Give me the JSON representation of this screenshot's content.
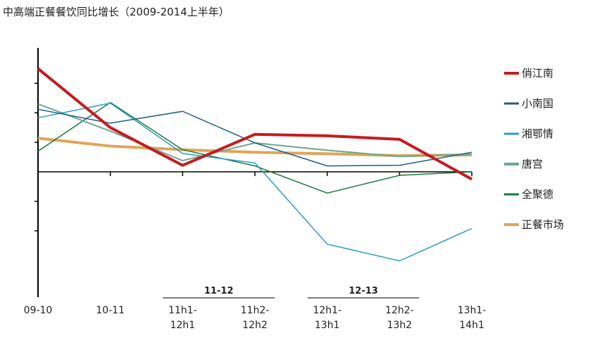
{
  "title": "中高端正餐餐饮同比增长（2009-2014上半年）",
  "chart_data": {
    "type": "line",
    "title": "中高端正餐餐饮同比增长（2009-2014上半年）",
    "xlabel": "",
    "ylabel": "",
    "ylim": [
      -0.3,
      0.3
    ],
    "categories": [
      [
        "09-10"
      ],
      [
        "10-11"
      ],
      [
        "11h1-",
        "12h1"
      ],
      [
        "11h2-",
        "12h2"
      ],
      [
        "12h1-",
        "13h1"
      ],
      [
        "12h2-",
        "13h2"
      ],
      [
        "13h1-",
        "14h1"
      ]
    ],
    "groups": [
      {
        "label": "11-12",
        "from": 2,
        "to": 3
      },
      {
        "label": "12-13",
        "from": 4,
        "to": 5
      }
    ],
    "series": [
      {
        "name": "正餐市场",
        "color": "#e0a55a",
        "width": 4,
        "values": [
          0.114,
          0.087,
          0.075,
          0.066,
          0.061,
          0.055,
          0.057
        ]
      },
      {
        "name": "全聚德",
        "color": "#1a7a3a",
        "width": 1.5,
        "values": [
          0.07,
          0.235,
          0.075,
          0.02,
          -0.072,
          -0.012,
          0.0
        ]
      },
      {
        "name": "唐宫",
        "color": "#6aa890",
        "width": 2,
        "values": [
          0.23,
          0.138,
          0.038,
          0.098,
          0.073,
          0.052,
          0.06
        ]
      },
      {
        "name": "湘鄂情",
        "color": "#2a9bc4",
        "width": 1.5,
        "values": [
          0.183,
          0.233,
          0.062,
          0.03,
          -0.245,
          -0.302,
          -0.192
        ]
      },
      {
        "name": "小南国",
        "color": "#1b5e8a",
        "width": 1.5,
        "values": [
          0.212,
          0.165,
          0.205,
          0.098,
          0.02,
          0.022,
          0.066
        ]
      },
      {
        "name": "俏江南",
        "color": "#c8191e",
        "width": 4,
        "values": [
          0.35,
          0.15,
          0.022,
          0.127,
          0.122,
          0.11,
          -0.025
        ]
      }
    ],
    "legend_order": [
      "俏江南",
      "小南国",
      "湘鄂情",
      "唐宫",
      "全聚德",
      "正餐市场"
    ],
    "legend_position": "right"
  }
}
